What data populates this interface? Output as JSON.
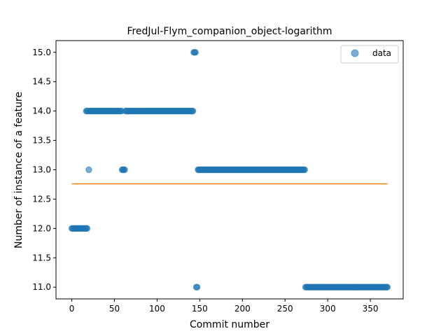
{
  "chart_data": {
    "type": "scatter",
    "title": "FredJul-Flym_companion_object-logarithm",
    "xlabel": "Commit number",
    "ylabel": "Number of instance of a feature",
    "xlim": [
      -18.5,
      388.5
    ],
    "ylim": [
      10.8,
      15.2
    ],
    "xticks": [
      0,
      50,
      100,
      150,
      200,
      250,
      300,
      350
    ],
    "yticks": [
      11.0,
      11.5,
      12.0,
      12.5,
      13.0,
      13.5,
      14.0,
      14.5,
      15.0
    ],
    "xtick_labels": [
      "0",
      "50",
      "100",
      "150",
      "200",
      "250",
      "300",
      "350"
    ],
    "ytick_labels": [
      "11.0",
      "11.5",
      "12.0",
      "12.5",
      "13.0",
      "13.5",
      "14.0",
      "14.5",
      "15.0"
    ],
    "legend": {
      "position": "top-right",
      "entries": [
        "data"
      ]
    },
    "grid": false,
    "series": [
      {
        "name": "data",
        "kind": "scatter",
        "color": "#1f77b4",
        "alpha": 0.6,
        "segments": [
          {
            "x_start": 0,
            "x_end": 18,
            "y": 12.0
          },
          {
            "x_start": 17,
            "x_end": 19,
            "y": 14.0
          },
          {
            "x_start": 20,
            "x_end": 20,
            "y": 13.0
          },
          {
            "x_start": 21,
            "x_end": 58,
            "y": 14.0
          },
          {
            "x_start": 59,
            "x_end": 62,
            "y": 13.0
          },
          {
            "x_start": 63,
            "x_end": 142,
            "y": 14.0
          },
          {
            "x_start": 143,
            "x_end": 145,
            "y": 15.0
          },
          {
            "x_start": 146,
            "x_end": 147,
            "y": 11.0
          },
          {
            "x_start": 148,
            "x_end": 273,
            "y": 13.0
          },
          {
            "x_start": 274,
            "x_end": 370,
            "y": 11.0
          }
        ]
      },
      {
        "name": "",
        "kind": "line",
        "color": "#ff7f0e",
        "x": [
          0,
          370
        ],
        "y": [
          12.76,
          12.76
        ]
      }
    ]
  }
}
